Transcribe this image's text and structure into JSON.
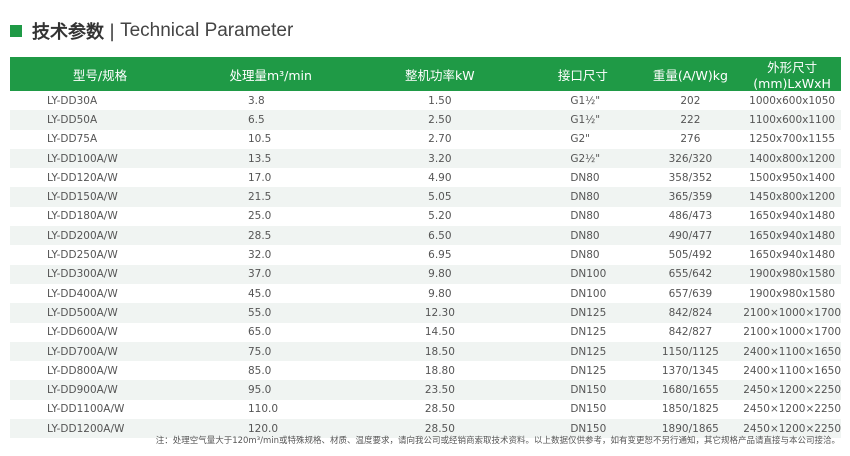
{
  "title": {
    "cn": "技术参数",
    "sep": "|",
    "en": "Technical Parameter"
  },
  "accent": "#1f9a46",
  "table": {
    "headers": [
      "型号/规格",
      "处理量m³/min",
      "整机功率kW",
      "接口尺寸",
      "重量(A/W)kg",
      "外形尺寸(mm)LxWxH"
    ],
    "rows": [
      [
        "LY-DD30A",
        "3.8",
        "1.50",
        "G1½\"",
        "202",
        "1000x600x1050"
      ],
      [
        "LY-DD50A",
        "6.5",
        "2.50",
        "G1½\"",
        "222",
        "1100x600x1100"
      ],
      [
        "LY-DD75A",
        "10.5",
        "2.70",
        "G2\"",
        "276",
        "1250x700x1155"
      ],
      [
        "LY-DD100A/W",
        "13.5",
        "3.20",
        "G2½\"",
        "326/320",
        "1400x800x1200"
      ],
      [
        "LY-DD120A/W",
        "17.0",
        "4.90",
        "DN80",
        "358/352",
        "1500x950x1400"
      ],
      [
        "LY-DD150A/W",
        "21.5",
        "5.05",
        "DN80",
        "365/359",
        "1450x800x1200"
      ],
      [
        "LY-DD180A/W",
        "25.0",
        "5.20",
        "DN80",
        "486/473",
        "1650x940x1480"
      ],
      [
        "LY-DD200A/W",
        "28.5",
        "6.50",
        "DN80",
        "490/477",
        "1650x940x1480"
      ],
      [
        "LY-DD250A/W",
        "32.0",
        "6.95",
        "DN80",
        "505/492",
        "1650x940x1480"
      ],
      [
        "LY-DD300A/W",
        "37.0",
        "9.80",
        "DN100",
        "655/642",
        "1900x980x1580"
      ],
      [
        "LY-DD400A/W",
        "45.0",
        "9.80",
        "DN100",
        "657/639",
        "1900x980x1580"
      ],
      [
        "LY-DD500A/W",
        "55.0",
        "12.30",
        "DN125",
        "842/824",
        "2100×1000×1700"
      ],
      [
        "LY-DD600A/W",
        "65.0",
        "14.50",
        "DN125",
        "842/827",
        "2100×1000×1700"
      ],
      [
        "LY-DD700A/W",
        "75.0",
        "18.50",
        "DN125",
        "1150/1125",
        "2400×1100×1650"
      ],
      [
        "LY-DD800A/W",
        "85.0",
        "18.80",
        "DN125",
        "1370/1345",
        "2400×1100×1650"
      ],
      [
        "LY-DD900A/W",
        "95.0",
        "23.50",
        "DN150",
        "1680/1655",
        "2450×1200×2250"
      ],
      [
        "LY-DD1100A/W",
        "110.0",
        "28.50",
        "DN150",
        "1850/1825",
        "2450×1200×2250"
      ],
      [
        "LY-DD1200A/W",
        "120.0",
        "28.50",
        "DN150",
        "1890/1865",
        "2450×1200×2250"
      ]
    ]
  },
  "note": "注：处理空气量大于120m³/min或特殊规格、材质、温度要求，请向我公司或经销商索取技术资料。以上数据仅供参考，如有变更恕不另行通知，其它规格产品请直接与本公司接洽。"
}
